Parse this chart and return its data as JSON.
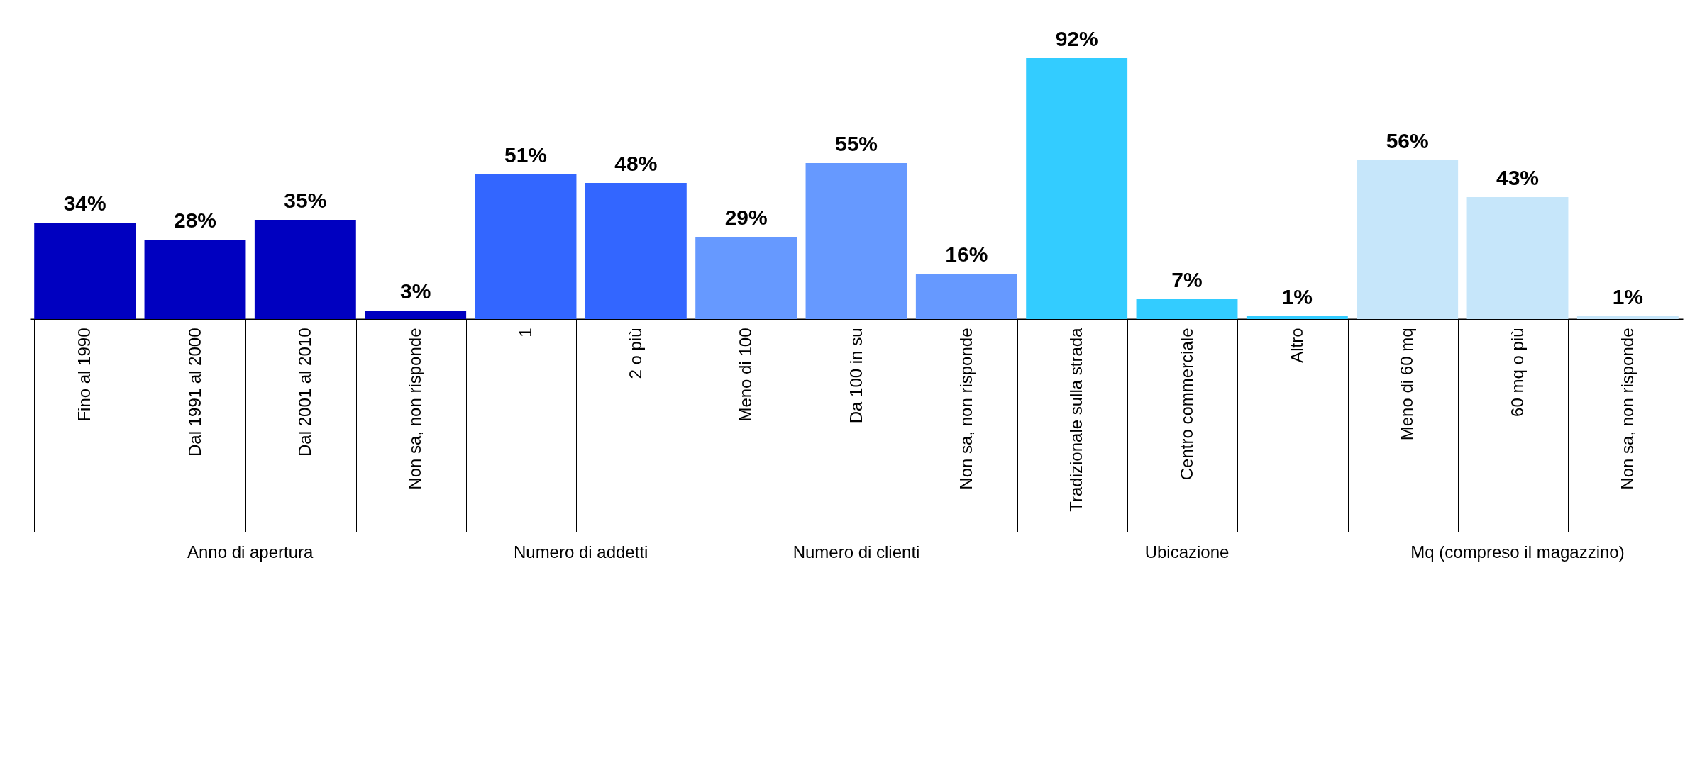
{
  "chart_data": {
    "type": "bar",
    "categories": [
      "Fino al 1990",
      "Dal 1991 al 2000",
      "Dal 2001 al 2010",
      "Non sa, non risponde",
      "1",
      "2 o più",
      "Meno di 100",
      "Da 100 in su",
      "Non sa, non risponde",
      "Tradizionale sulla strada",
      "Centro commerciale",
      "Altro",
      "Meno di 60 mq",
      "60 mq o più",
      "Non sa, non risponde"
    ],
    "series": [
      {
        "name": "Anno di apertura",
        "color": "#0000c0",
        "values": [
          34,
          28,
          35,
          3,
          null,
          null,
          null,
          null,
          null,
          null,
          null,
          null,
          null,
          null,
          null
        ],
        "value_labels": [
          "34%",
          "28%",
          "35%",
          "3%",
          null,
          null,
          null,
          null,
          null,
          null,
          null,
          null,
          null,
          null,
          null
        ]
      },
      {
        "name": "Numero di addetti",
        "color": "#3366ff",
        "values": [
          null,
          null,
          null,
          null,
          51,
          48,
          null,
          null,
          null,
          null,
          null,
          null,
          null,
          null,
          null
        ],
        "value_labels": [
          null,
          null,
          null,
          null,
          "51%",
          "48%",
          null,
          null,
          null,
          null,
          null,
          null,
          null,
          null,
          null
        ]
      },
      {
        "name": "Numero di clienti",
        "color": "#6699ff",
        "values": [
          null,
          null,
          null,
          null,
          null,
          null,
          29,
          55,
          16,
          null,
          null,
          null,
          null,
          null,
          null
        ],
        "value_labels": [
          null,
          null,
          null,
          null,
          null,
          null,
          "29%",
          "55%",
          "16%",
          null,
          null,
          null,
          null,
          null,
          null
        ]
      },
      {
        "name": "Ubicazione",
        "color": "#33ccff",
        "values": [
          null,
          null,
          null,
          null,
          null,
          null,
          null,
          null,
          null,
          92,
          7,
          1,
          null,
          null,
          null
        ],
        "value_labels": [
          null,
          null,
          null,
          null,
          null,
          null,
          null,
          null,
          null,
          "92%",
          "7%",
          "1%",
          null,
          null,
          null
        ]
      },
      {
        "name": "Mq (compreso il magazzino)",
        "color": "#c6e6fa",
        "values": [
          null,
          null,
          null,
          null,
          null,
          null,
          null,
          null,
          null,
          null,
          null,
          null,
          56,
          43,
          1
        ],
        "value_labels": [
          null,
          null,
          null,
          null,
          null,
          null,
          null,
          null,
          null,
          null,
          null,
          null,
          "56%",
          "43%",
          "1%"
        ]
      }
    ],
    "legend": false,
    "grid": false
  }
}
